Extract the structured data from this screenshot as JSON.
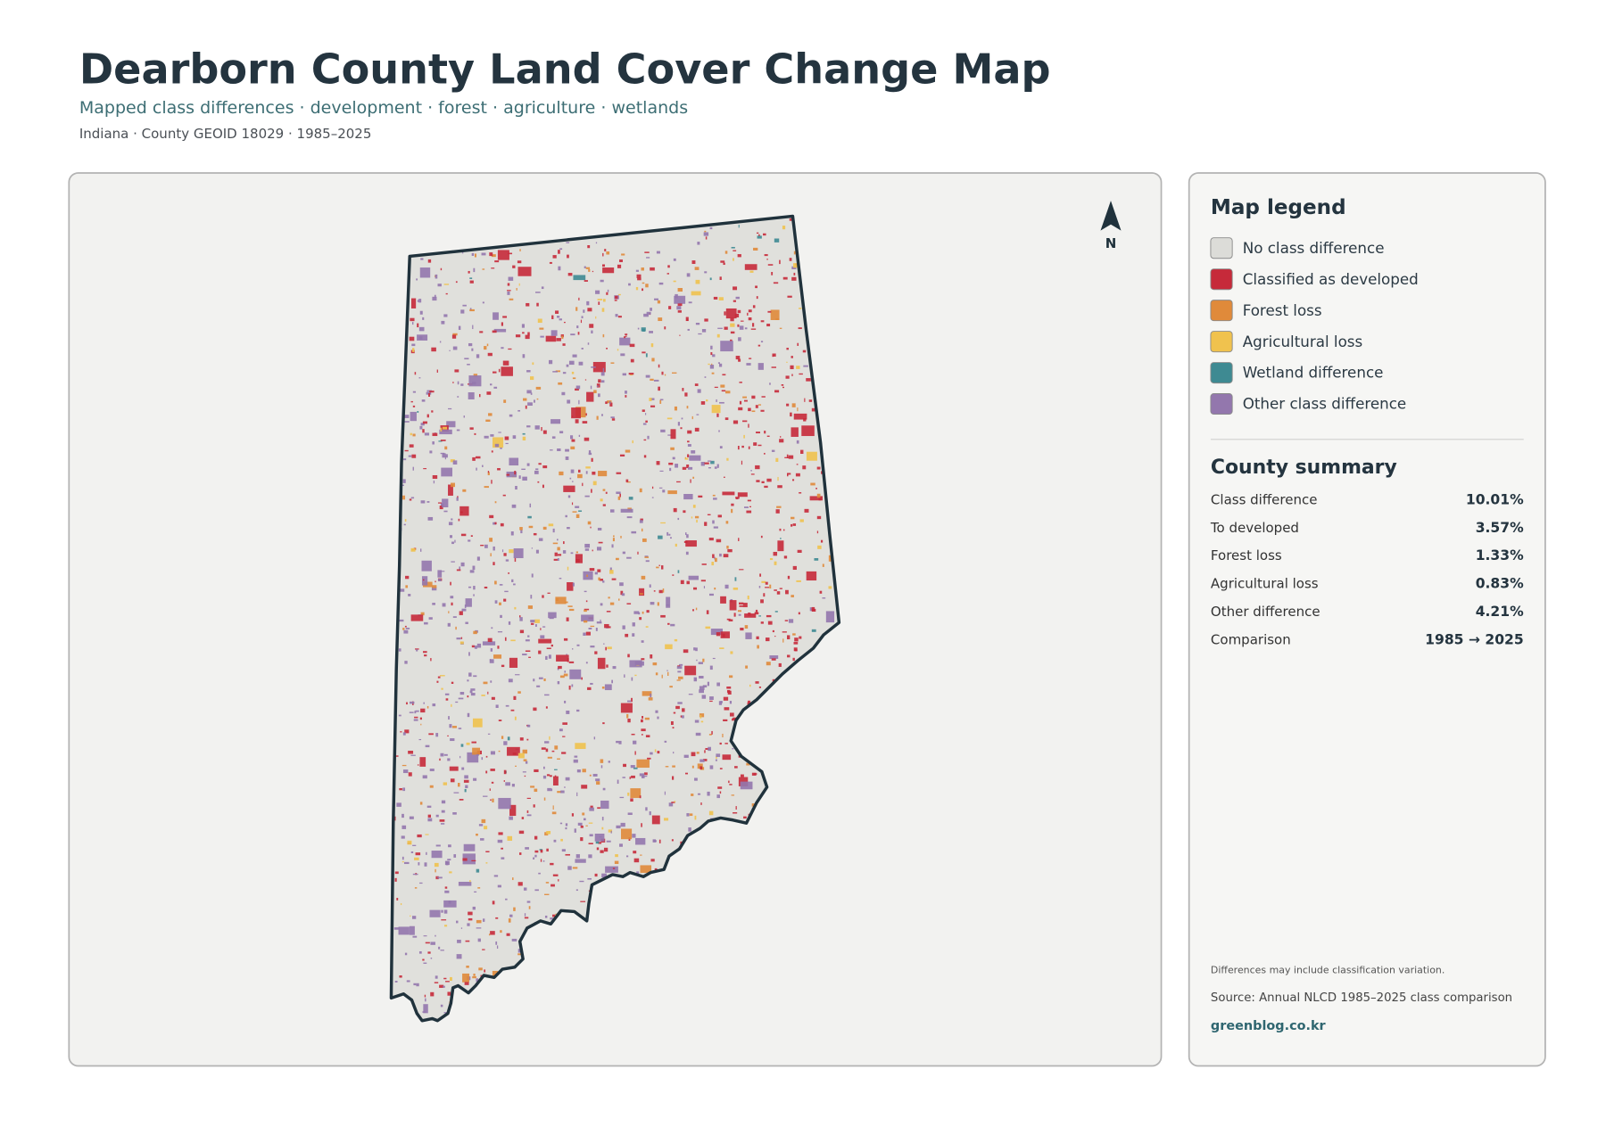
{
  "header": {
    "title": "Dearborn County Land Cover Change Map",
    "subtitle": "Mapped class differences · development · forest · agriculture · wetlands",
    "meta": "Indiana · County GEOID 18029 · 1985–2025"
  },
  "map": {
    "north_label": "N"
  },
  "legend": {
    "title": "Map legend",
    "items": [
      {
        "label": "No class difference",
        "color": "#dcdcd8"
      },
      {
        "label": "Classified as developed",
        "color": "#c62a3a"
      },
      {
        "label": "Forest loss",
        "color": "#e08a3a"
      },
      {
        "label": "Agricultural loss",
        "color": "#f0c24e"
      },
      {
        "label": "Wetland difference",
        "color": "#3e8a92"
      },
      {
        "label": "Other class difference",
        "color": "#9377ad"
      }
    ]
  },
  "summary": {
    "title": "County summary",
    "rows": [
      {
        "label": "Class difference",
        "value": "10.01%"
      },
      {
        "label": "To developed",
        "value": "3.57%"
      },
      {
        "label": "Forest loss",
        "value": "1.33%"
      },
      {
        "label": "Agricultural loss",
        "value": "0.83%"
      },
      {
        "label": "Other difference",
        "value": "4.21%"
      },
      {
        "label": "Comparison",
        "value": "1985 → 2025"
      }
    ]
  },
  "footer": {
    "note": "Differences may include classification variation.",
    "source": "Source: Annual NLCD 1985–2025 class comparison",
    "site": "greenblog.co.kr"
  }
}
